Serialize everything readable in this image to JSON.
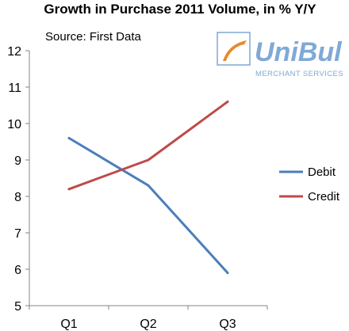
{
  "chart_data": {
    "type": "line",
    "title": "Growth in Purchase 2011 Volume, in % Y/Y",
    "subtitle": "Source: First Data",
    "categories": [
      "Q1",
      "Q2",
      "Q3"
    ],
    "ylim": [
      5,
      12
    ],
    "yticks": [
      "5",
      "6",
      "7",
      "8",
      "9",
      "10",
      "11",
      "12"
    ],
    "grid": false,
    "legend_position": "right",
    "series": [
      {
        "name": "Debit",
        "values": [
          9.6,
          8.3,
          5.9
        ],
        "color": "#4a7ebb"
      },
      {
        "name": "Credit",
        "values": [
          8.2,
          9.0,
          10.6
        ],
        "color": "#be4b48"
      }
    ]
  },
  "watermark": {
    "brand": "UniBul",
    "tagline": "MERCHANT SERVICES",
    "color": "#7fa9d6",
    "accent": "#e8892b"
  }
}
